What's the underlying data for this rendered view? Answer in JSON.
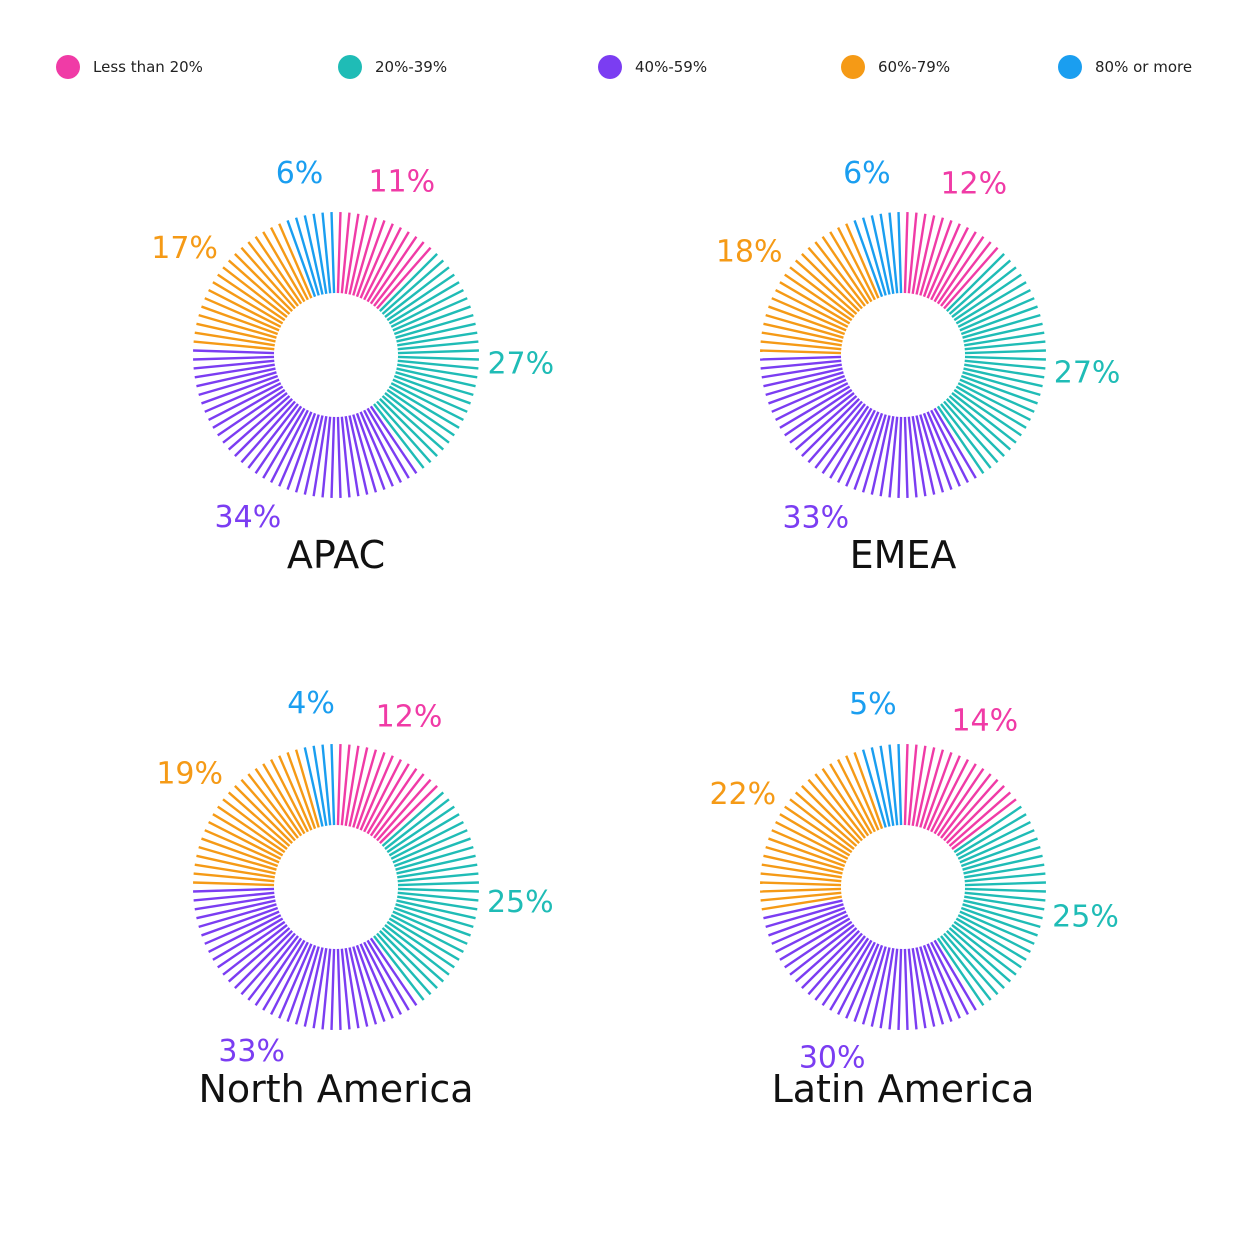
{
  "chart_data": [
    {
      "type": "pie",
      "title": "APAC",
      "categories": [
        "Less than 20%",
        "20%-39%",
        "40%-59%",
        "60%-79%",
        "80% or more"
      ],
      "values": [
        11,
        27,
        34,
        17,
        6
      ],
      "labels": [
        "11%",
        "27%",
        "34%",
        "17%",
        "6%"
      ]
    },
    {
      "type": "pie",
      "title": "EMEA",
      "categories": [
        "Less than 20%",
        "20%-39%",
        "40%-59%",
        "60%-79%",
        "80% or more"
      ],
      "values": [
        12,
        27,
        33,
        18,
        6
      ],
      "labels": [
        "12%",
        "27%",
        "33%",
        "18%",
        "6%"
      ]
    },
    {
      "type": "pie",
      "title": "North America",
      "categories": [
        "Less than 20%",
        "20%-39%",
        "40%-59%",
        "60%-79%",
        "80% or more"
      ],
      "values": [
        12,
        25,
        33,
        19,
        4
      ],
      "labels": [
        "12%",
        "25%",
        "33%",
        "19%",
        "4%"
      ]
    },
    {
      "type": "pie",
      "title": "Latin America",
      "categories": [
        "Less than 20%",
        "20%-39%",
        "40%-59%",
        "60%-79%",
        "80% or more"
      ],
      "values": [
        14,
        25,
        30,
        22,
        5
      ],
      "labels": [
        "14%",
        "25%",
        "30%",
        "22%",
        "5%"
      ]
    }
  ],
  "legend": {
    "placement": "top",
    "items": [
      {
        "label": "Less than 20%",
        "color": "#f03ba6"
      },
      {
        "label": "20%-39%",
        "color": "#1fbcb6"
      },
      {
        "label": "40%-59%",
        "color": "#7b3df2"
      },
      {
        "label": "60%-79%",
        "color": "#f59a16"
      },
      {
        "label": "80% or more",
        "color": "#1a9ef0"
      }
    ]
  }
}
